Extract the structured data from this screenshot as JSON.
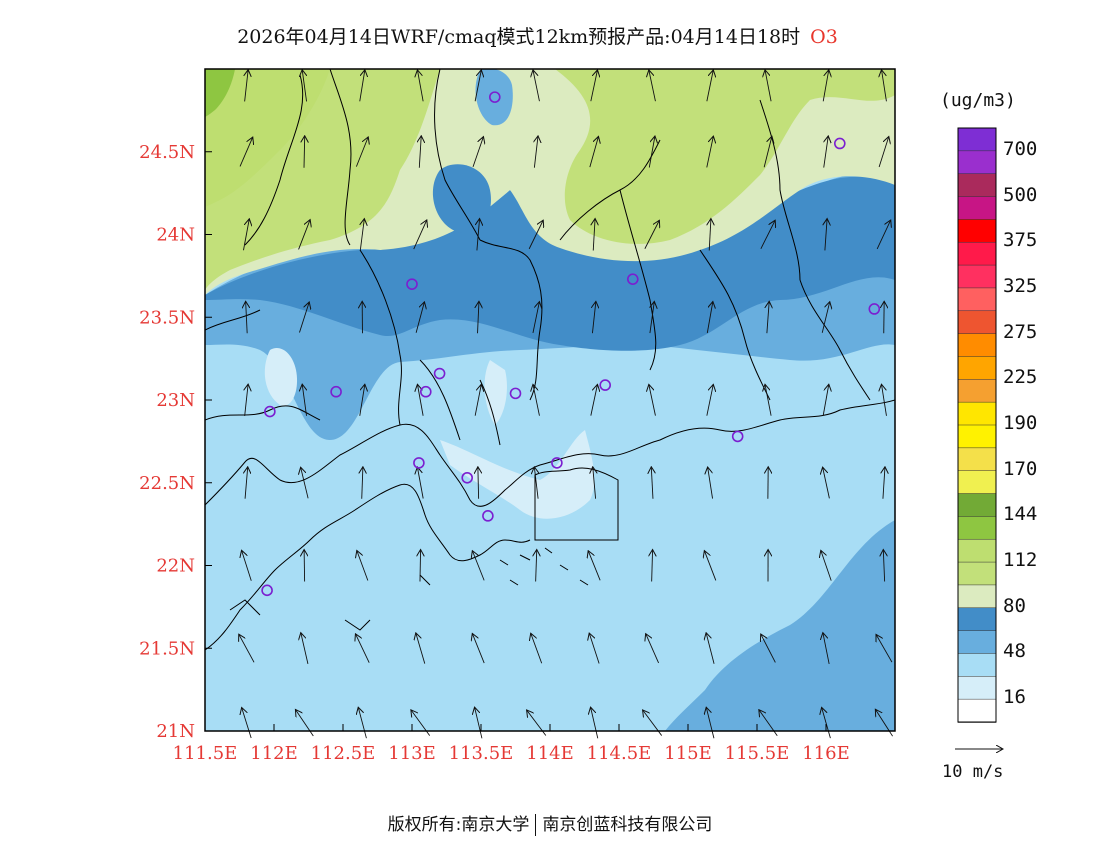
{
  "title": {
    "text": "2026年04月14日WRF/cmaq模式12km预报产品:04月14日18时",
    "species": "O3"
  },
  "map": {
    "lon_range": [
      111.5,
      116.5
    ],
    "lat_range": [
      21.0,
      25.0
    ],
    "lat_labels": [
      "24.5N",
      "24N",
      "23.5N",
      "23N",
      "22.5N",
      "22N",
      "21.5N",
      "21N"
    ],
    "lat_values": [
      24.5,
      24.0,
      23.5,
      23.0,
      22.5,
      22.0,
      21.5,
      21.0
    ],
    "lon_labels": [
      "111.5E",
      "112E",
      "112.5E",
      "113E",
      "113.5E",
      "114E",
      "114.5E",
      "115E",
      "115.5E",
      "116E"
    ],
    "lon_values": [
      111.5,
      112.0,
      112.5,
      113.0,
      113.5,
      114.0,
      114.5,
      115.0,
      115.5,
      116.0
    ],
    "stations": [
      {
        "lon": 113.6,
        "lat": 24.83
      },
      {
        "lon": 116.1,
        "lat": 24.55
      },
      {
        "lon": 113.0,
        "lat": 23.7
      },
      {
        "lon": 114.6,
        "lat": 23.73
      },
      {
        "lon": 116.35,
        "lat": 23.55
      },
      {
        "lon": 113.2,
        "lat": 23.16
      },
      {
        "lon": 112.45,
        "lat": 23.05
      },
      {
        "lon": 113.1,
        "lat": 23.05
      },
      {
        "lon": 113.75,
        "lat": 23.04
      },
      {
        "lon": 114.4,
        "lat": 23.09
      },
      {
        "lon": 111.97,
        "lat": 22.93
      },
      {
        "lon": 115.36,
        "lat": 22.78
      },
      {
        "lon": 113.05,
        "lat": 22.62
      },
      {
        "lon": 114.05,
        "lat": 22.62
      },
      {
        "lon": 113.4,
        "lat": 22.53
      },
      {
        "lon": 113.55,
        "lat": 22.3
      },
      {
        "lon": 111.95,
        "lat": 21.85
      }
    ],
    "wind_rows": [
      {
        "lat": 24.9,
        "angle": -90
      },
      {
        "lat": 24.5,
        "angle": -78
      },
      {
        "lat": 24.0,
        "angle": -75
      },
      {
        "lat": 23.5,
        "angle": -82
      },
      {
        "lat": 23.0,
        "angle": -90
      },
      {
        "lat": 22.5,
        "angle": -95
      },
      {
        "lat": 22.0,
        "angle": -100
      },
      {
        "lat": 21.5,
        "angle": -110
      },
      {
        "lat": 21.05,
        "angle": -115
      }
    ]
  },
  "legend": {
    "unit": "(ug/m3)",
    "colors": [
      "#7e2ed4",
      "#9a2fce",
      "#aa2a5c",
      "#c71585",
      "#ff0000",
      "#ff1a4a",
      "#ff3060",
      "#ff6060",
      "#ee5530",
      "#ff8c00",
      "#ffa500",
      "#f5a030",
      "#ffe600",
      "#fff200",
      "#f4e04a",
      "#f0f050",
      "#72aa36",
      "#8ec641",
      "#bede70",
      "#c2e07a",
      "#dcebc0",
      "#428dc8",
      "#68aede",
      "#a8ddf5",
      "#d6eef9",
      "#ffffff"
    ],
    "labels": [
      "700",
      "500",
      "375",
      "325",
      "275",
      "225",
      "190",
      "170",
      "144",
      "112",
      "80",
      "48",
      "16"
    ],
    "label_boundary_index": [
      1,
      3,
      5,
      7,
      9,
      11,
      13,
      15,
      17,
      19,
      21,
      23,
      25
    ]
  },
  "reference_vector": {
    "label": "10 m/s"
  },
  "footer": {
    "left": "版权所有:南京大学",
    "right": "南京创蓝科技有限公司"
  },
  "colors": {
    "axis_label": "#e53935",
    "station": "#7b1fd0",
    "sea_fill": "#a8ddf5",
    "boundary": "#000000"
  }
}
